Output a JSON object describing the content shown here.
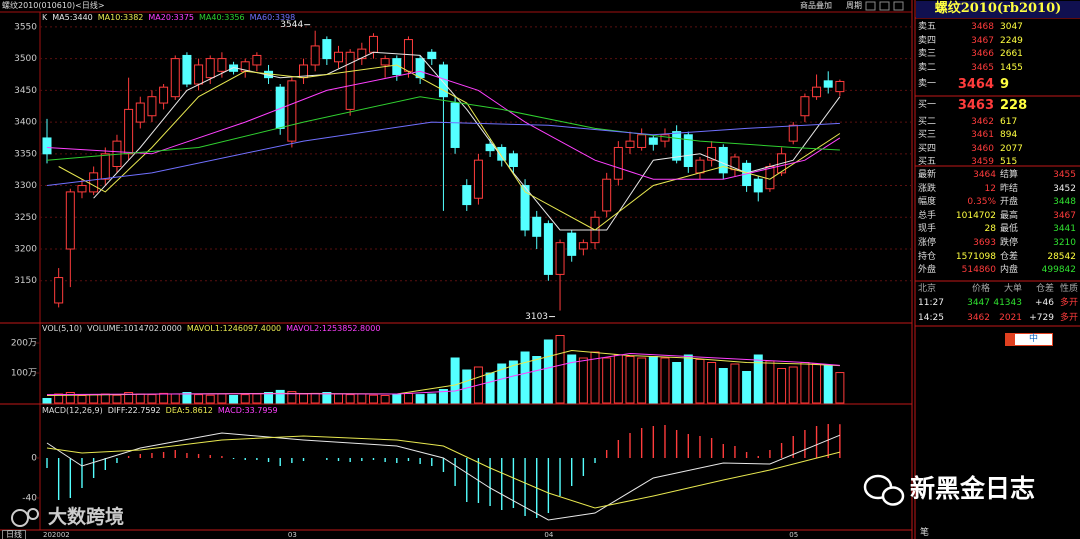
{
  "chart_data": [
    {
      "type": "candlestick",
      "title": "螺纹2010(010610)<日线>",
      "legend_label": "K",
      "categories": [
        "202002",
        null,
        null,
        null,
        null,
        null,
        null,
        null,
        null,
        null,
        null,
        null,
        null,
        null,
        null,
        null,
        null,
        null,
        null,
        null,
        null,
        "03",
        null,
        null,
        null,
        null,
        null,
        null,
        null,
        null,
        null,
        null,
        null,
        null,
        null,
        null,
        null,
        null,
        null,
        null,
        null,
        null,
        null,
        "04",
        null,
        null,
        null,
        null,
        null,
        null,
        null,
        null,
        null,
        null,
        null,
        null,
        null,
        null,
        null,
        null,
        null,
        null,
        null,
        null,
        "05",
        null,
        null,
        null,
        null
      ],
      "open": [
        3375,
        3115,
        3200,
        3290,
        3290,
        3310,
        3330,
        3350,
        3400,
        3410,
        3430,
        3440,
        3505,
        3460,
        3470,
        3480,
        3490,
        3480,
        3490,
        3480,
        3455,
        3370,
        3470,
        3490,
        3530,
        3495,
        3420,
        3500,
        3510,
        3490,
        3500,
        3480,
        3500,
        3510,
        3490,
        3430,
        3300,
        3280,
        3365,
        3360,
        3350,
        3300,
        3250,
        3240,
        3160,
        3225,
        3200,
        3210,
        3260,
        3310,
        3360,
        3360,
        3375,
        3370,
        3385,
        3380,
        3320,
        3340,
        3360,
        3325,
        3335,
        3310,
        3295,
        3320,
        3370,
        3410,
        3440,
        3465,
        3448
      ],
      "high": [
        3405,
        3170,
        3295,
        3310,
        3330,
        3360,
        3380,
        3470,
        3440,
        3450,
        3460,
        3505,
        3510,
        3500,
        3505,
        3510,
        3495,
        3500,
        3510,
        3490,
        3460,
        3470,
        3500,
        3544,
        3535,
        3520,
        3515,
        3525,
        3540,
        3505,
        3505,
        3535,
        3505,
        3515,
        3495,
        3440,
        3310,
        3350,
        3375,
        3365,
        3355,
        3310,
        3260,
        3245,
        3215,
        3230,
        3215,
        3260,
        3320,
        3370,
        3385,
        3390,
        3380,
        3390,
        3395,
        3385,
        3345,
        3370,
        3365,
        3350,
        3340,
        3315,
        3335,
        3360,
        3400,
        3445,
        3475,
        3480,
        3467
      ],
      "low": [
        3335,
        3108,
        3140,
        3280,
        3285,
        3300,
        3320,
        3340,
        3390,
        3400,
        3420,
        3435,
        3455,
        3450,
        3460,
        3470,
        3475,
        3470,
        3480,
        3460,
        3380,
        3360,
        3460,
        3480,
        3490,
        3485,
        3410,
        3490,
        3500,
        3470,
        3465,
        3470,
        3460,
        3490,
        3260,
        3350,
        3260,
        3270,
        3345,
        3330,
        3320,
        3220,
        3200,
        3150,
        3103,
        3180,
        3190,
        3200,
        3250,
        3300,
        3350,
        3355,
        3355,
        3360,
        3335,
        3320,
        3310,
        3330,
        3310,
        3315,
        3290,
        3275,
        3290,
        3315,
        3365,
        3400,
        3435,
        3445,
        3441
      ],
      "close": [
        3350,
        3155,
        3290,
        3300,
        3320,
        3350,
        3370,
        3420,
        3430,
        3440,
        3455,
        3500,
        3460,
        3490,
        3500,
        3500,
        3480,
        3495,
        3505,
        3470,
        3390,
        3465,
        3490,
        3520,
        3500,
        3510,
        3510,
        3515,
        3535,
        3500,
        3475,
        3530,
        3470,
        3500,
        3440,
        3360,
        3270,
        3340,
        3355,
        3340,
        3330,
        3230,
        3220,
        3160,
        3210,
        3190,
        3210,
        3250,
        3310,
        3360,
        3370,
        3380,
        3365,
        3380,
        3340,
        3330,
        3340,
        3360,
        3320,
        3345,
        3300,
        3290,
        3330,
        3350,
        3395,
        3440,
        3455,
        3455,
        3464
      ],
      "up_color": "#ff3c3c",
      "down_color": "#54ffff",
      "series": [
        {
          "name": "MA5:3440",
          "color": "#e8e8e8",
          "x": [
            4,
            8,
            12,
            16,
            20,
            24,
            28,
            32,
            36,
            40,
            44,
            48,
            52,
            56,
            60,
            64,
            68
          ],
          "values": [
            3280,
            3360,
            3450,
            3486,
            3470,
            3475,
            3510,
            3505,
            3420,
            3320,
            3230,
            3230,
            3340,
            3350,
            3320,
            3340,
            3440
          ]
        },
        {
          "name": "MA10:3382",
          "color": "#e8e850",
          "x": [
            1,
            5,
            9,
            13,
            17,
            22,
            30,
            36,
            41,
            47,
            52,
            58,
            62,
            68
          ],
          "values": [
            3330,
            3290,
            3360,
            3440,
            3480,
            3470,
            3490,
            3430,
            3290,
            3230,
            3300,
            3330,
            3310,
            3382
          ]
        },
        {
          "name": "MA20:3375",
          "color": "#ff40ff",
          "x": [
            0,
            9,
            17,
            24,
            32,
            37,
            41,
            47,
            52,
            58,
            65,
            68
          ],
          "values": [
            3360,
            3350,
            3400,
            3450,
            3480,
            3450,
            3400,
            3340,
            3310,
            3310,
            3340,
            3375
          ]
        },
        {
          "name": "MA40:3356",
          "color": "#30d030",
          "x": [
            0,
            13,
            22,
            32,
            39,
            47,
            56,
            64,
            68
          ],
          "values": [
            3340,
            3360,
            3400,
            3440,
            3420,
            3390,
            3370,
            3360,
            3356
          ]
        },
        {
          "name": "MA60:3398",
          "color": "#7070ff",
          "x": [
            0,
            9,
            22,
            33,
            43,
            52,
            60,
            68
          ],
          "values": [
            3300,
            3320,
            3370,
            3400,
            3395,
            3380,
            3390,
            3398
          ]
        }
      ],
      "ylim": [
        3085,
        3564
      ],
      "yticks": [
        3150,
        3200,
        3250,
        3300,
        3350,
        3400,
        3450,
        3500,
        3550
      ],
      "grid": true
    },
    {
      "type": "volume",
      "label": "VOL(5,10)",
      "volume_label": "VOLUME:1014702.0000",
      "values": [
        150000,
        300000,
        350000,
        250000,
        280000,
        300000,
        260000,
        350000,
        300000,
        280000,
        320000,
        300000,
        350000,
        280000,
        260000,
        300000,
        250000,
        280000,
        300000,
        350000,
        420000,
        380000,
        300000,
        320000,
        350000,
        300000,
        280000,
        300000,
        260000,
        250000,
        300000,
        320000,
        280000,
        300000,
        450000,
        1500000,
        1100000,
        1200000,
        1000000,
        1300000,
        1400000,
        1700000,
        1550000,
        2100000,
        2250000,
        1600000,
        1500000,
        1700000,
        1500000,
        1600000,
        1550000,
        1500000,
        1550000,
        1500000,
        1350000,
        1600000,
        1450000,
        1350000,
        1150000,
        1300000,
        1050000,
        1600000,
        1400000,
        1150000,
        1200000,
        1350000,
        1300000,
        1250000,
        1014702
      ],
      "series": [
        {
          "name": "MAVOL1:1246097.4000",
          "color": "#e8e850",
          "x": [
            0,
            10,
            20,
            30,
            35,
            40,
            45,
            50,
            55,
            60,
            65,
            68
          ],
          "values": [
            250000,
            300000,
            320000,
            300000,
            600000,
            1250000,
            1750000,
            1580000,
            1500000,
            1350000,
            1300000,
            1246097.4
          ]
        },
        {
          "name": "MAVOL2:1253852.8000",
          "color": "#ff40ff",
          "x": [
            0,
            10,
            20,
            30,
            35,
            40,
            45,
            50,
            55,
            60,
            65,
            68
          ],
          "values": [
            280000,
            300000,
            310000,
            300000,
            400000,
            900000,
            1350000,
            1650000,
            1550000,
            1450000,
            1350000,
            1253852.8
          ]
        }
      ],
      "ylim": [
        0,
        2600000
      ],
      "yticks": [
        {
          "value": 1000000,
          "label": "100万"
        },
        {
          "value": 2000000,
          "label": "200万"
        }
      ],
      "grid": false
    },
    {
      "type": "macd",
      "label": "MACD(12,26,9)",
      "hist_label": "MACD:33.7959",
      "values": [
        -10,
        -42,
        -40,
        -30,
        -20,
        -12,
        -5,
        2,
        4,
        5,
        6,
        8,
        5,
        4,
        3,
        2,
        -1,
        -2,
        -2,
        -4,
        -8,
        -5,
        -3,
        0,
        -2,
        -3,
        -4,
        -3,
        -2,
        -4,
        -5,
        -3,
        -6,
        -8,
        -14,
        -28,
        -44,
        -45,
        -48,
        -52,
        -50,
        -58,
        -60,
        -55,
        -38,
        -28,
        -18,
        -5,
        8,
        18,
        25,
        30,
        32,
        33,
        28,
        24,
        22,
        20,
        14,
        12,
        6,
        2,
        8,
        15,
        22,
        28,
        32,
        34,
        33.7959
      ],
      "up_color": "#ff3c3c",
      "down_color": "#54ffff",
      "series": [
        {
          "name": "DIFF:22.7592",
          "color": "#e8e8e8",
          "x": [
            0,
            3,
            8,
            15,
            22,
            30,
            34,
            38,
            43,
            47,
            52,
            58,
            62,
            68
          ],
          "values": [
            15,
            -8,
            10,
            25,
            18,
            12,
            0,
            -30,
            -62,
            -55,
            -20,
            -5,
            -6,
            22.7592
          ]
        },
        {
          "name": "DEA:5.8612",
          "color": "#e8e850",
          "x": [
            0,
            3,
            8,
            15,
            22,
            30,
            34,
            38,
            43,
            47,
            52,
            58,
            62,
            68
          ],
          "values": [
            10,
            5,
            8,
            18,
            22,
            18,
            12,
            -10,
            -35,
            -50,
            -38,
            -22,
            -12,
            5.8612
          ]
        }
      ],
      "ylim": [
        -72,
        53
      ],
      "yticks": [
        -40,
        0
      ],
      "grid": false
    }
  ],
  "toolbar": {
    "overlay": "商品叠加",
    "period": "周期"
  },
  "axis_tag": "日线",
  "panel": {
    "title": "螺纹2010(rb2010)",
    "asks": [
      [
        "卖五",
        "3468",
        "3047"
      ],
      [
        "卖四",
        "3467",
        "2249"
      ],
      [
        "卖三",
        "3466",
        "2661"
      ],
      [
        "卖二",
        "3465",
        "1455"
      ],
      [
        "卖一",
        "3464",
        "9"
      ]
    ],
    "bids": [
      [
        "买一",
        "3463",
        "228"
      ],
      [
        "买二",
        "3462",
        "617"
      ],
      [
        "买三",
        "3461",
        "894"
      ],
      [
        "买四",
        "3460",
        "2077"
      ],
      [
        "买五",
        "3459",
        "515"
      ]
    ],
    "stats": [
      [
        "最新",
        "3464",
        "结算",
        "3455"
      ],
      [
        "涨跌",
        "12",
        "昨结",
        "3452"
      ],
      [
        "幅度",
        "0.35%",
        "开盘",
        "3448"
      ],
      [
        "总手",
        "1014702",
        "最高",
        "3467"
      ],
      [
        "现手",
        "28",
        "最低",
        "3441"
      ],
      [
        "涨停",
        "3693",
        "跌停",
        "3210"
      ],
      [
        "持仓",
        "1571098",
        "仓差",
        "28542"
      ],
      [
        "外盘",
        "514860",
        "内盘",
        "499842"
      ]
    ],
    "trade_header": [
      "北京",
      "价格",
      "大单",
      "仓差",
      "性质"
    ],
    "trades": [
      [
        "11:27",
        "3447",
        "41343",
        "+46",
        "多开"
      ],
      [
        "14:25",
        "3462",
        "2021",
        "+729",
        "多开"
      ]
    ],
    "ime": "中",
    "footer": "笔"
  },
  "watermarks": [
    "新黑金日志",
    "大数跨境"
  ]
}
